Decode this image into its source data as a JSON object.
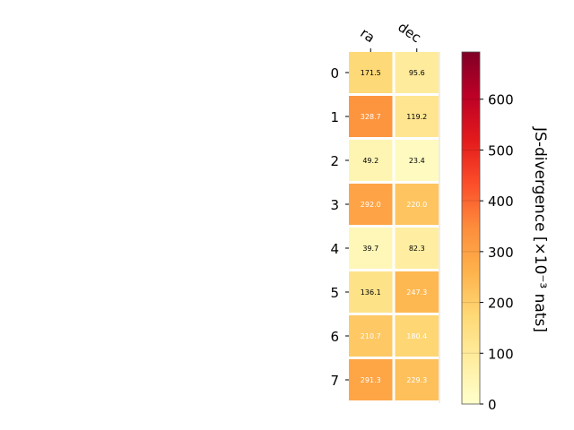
{
  "chart_data": {
    "type": "heatmap",
    "title": "",
    "columns": [
      "ra",
      "dec"
    ],
    "rows": [
      "0",
      "1",
      "2",
      "3",
      "4",
      "5",
      "6",
      "7"
    ],
    "values": [
      [
        171.5,
        95.6
      ],
      [
        328.7,
        119.2
      ],
      [
        49.2,
        23.4
      ],
      [
        292.0,
        220.0
      ],
      [
        39.7,
        82.3
      ],
      [
        136.1,
        247.3
      ],
      [
        210.7,
        180.4
      ],
      [
        291.3,
        229.3
      ]
    ],
    "value_labels": [
      [
        "171.5",
        "95.6"
      ],
      [
        "328.7",
        "119.2"
      ],
      [
        "49.2",
        "23.4"
      ],
      [
        "292.0",
        "220.0"
      ],
      [
        "39.7",
        "82.3"
      ],
      [
        "136.1",
        "247.3"
      ],
      [
        "210.7",
        "180.4"
      ],
      [
        "291.3",
        "229.3"
      ]
    ],
    "colorbar": {
      "label": "JS-divergence [×10⁻³ nats]",
      "min": 0,
      "max": 693,
      "ticks": [
        0,
        100,
        200,
        300,
        400,
        500,
        600
      ],
      "colormap": "YlOrRd"
    },
    "grid": false,
    "legend": "none"
  }
}
